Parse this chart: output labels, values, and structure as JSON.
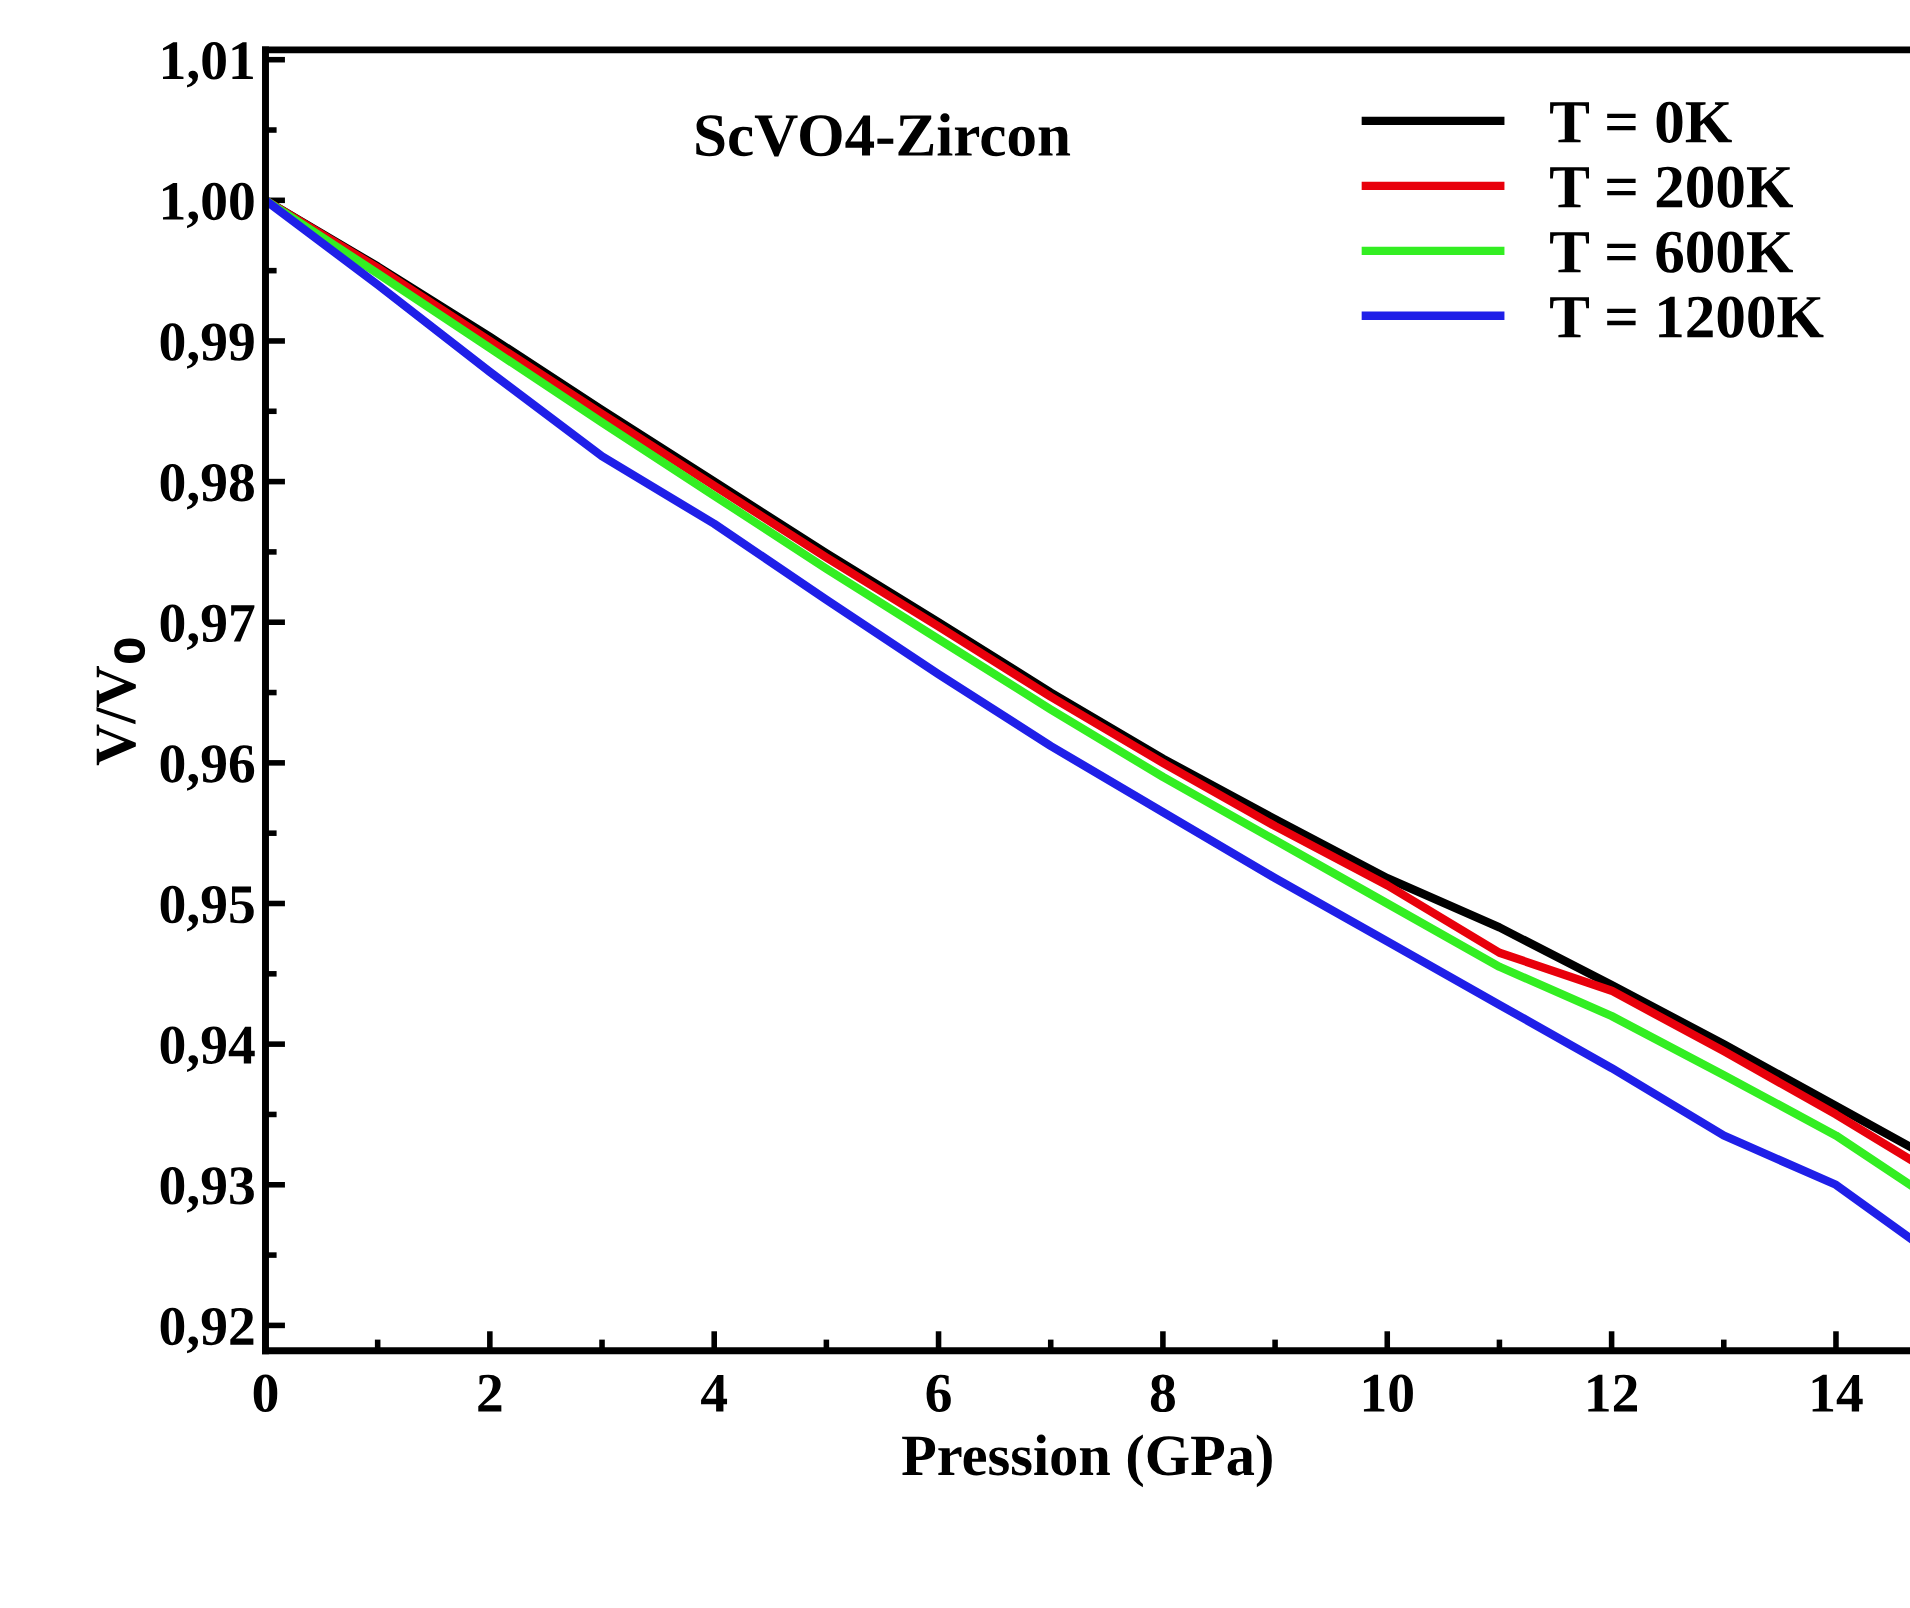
{
  "chart_data": {
    "type": "line",
    "title": "ScVO4-Zircon",
    "xlabel": "Pression (GPa)",
    "ylabel": "V/V$_{0}$",
    "x": [
      0,
      1,
      2,
      3,
      4,
      5,
      6,
      7,
      8,
      9,
      10,
      11,
      12,
      13,
      14,
      14.66
    ],
    "series": [
      {
        "name": "T = 0K",
        "color": "#000000",
        "values": [
          1.0,
          0.9953,
          0.9903,
          0.9851,
          0.98,
          0.9749,
          0.97,
          0.965,
          0.9603,
          0.956,
          0.9518,
          0.9483,
          0.9442,
          0.94,
          0.9356,
          0.9327
        ]
      },
      {
        "name": "T = 200K",
        "color": "#e8000b",
        "values": [
          1.0,
          0.9952,
          0.99,
          0.9848,
          0.9797,
          0.9746,
          0.9697,
          0.9647,
          0.96,
          0.9555,
          0.9513,
          0.9465,
          0.9438,
          0.9395,
          0.935,
          0.9318
        ]
      },
      {
        "name": "T = 600K",
        "color": "#33ee22",
        "values": [
          1.0,
          0.9948,
          0.9895,
          0.9842,
          0.979,
          0.9738,
          0.9688,
          0.9638,
          0.959,
          0.9545,
          0.95,
          0.9455,
          0.942,
          0.9378,
          0.9335,
          0.93
        ]
      },
      {
        "name": "T = 1200K",
        "color": "#1f1fe8",
        "values": [
          1.0,
          0.994,
          0.9878,
          0.9818,
          0.977,
          0.9716,
          0.9663,
          0.9612,
          0.9565,
          0.9518,
          0.9473,
          0.9428,
          0.9383,
          0.9335,
          0.93,
          0.9262
        ]
      }
    ],
    "xlim": [
      0,
      14.66
    ],
    "ylim": [
      0.9182,
      1.0107
    ],
    "xticks": [
      0,
      2,
      4,
      6,
      8,
      10,
      12,
      14
    ],
    "yticks": [
      {
        "value": 0.92,
        "label": "0,92"
      },
      {
        "value": 0.93,
        "label": "0,93"
      },
      {
        "value": 0.94,
        "label": "0,94"
      },
      {
        "value": 0.95,
        "label": "0,95"
      },
      {
        "value": 0.96,
        "label": "0,96"
      },
      {
        "value": 0.97,
        "label": "0,97"
      },
      {
        "value": 0.98,
        "label": "0,98"
      },
      {
        "value": 0.99,
        "label": "0,99"
      },
      {
        "value": 1.0,
        "label": "1,00"
      },
      {
        "value": 1.01,
        "label": "1,01"
      }
    ],
    "legend": "top right",
    "grid": false,
    "line_style": "solid",
    "marker": "none"
  }
}
